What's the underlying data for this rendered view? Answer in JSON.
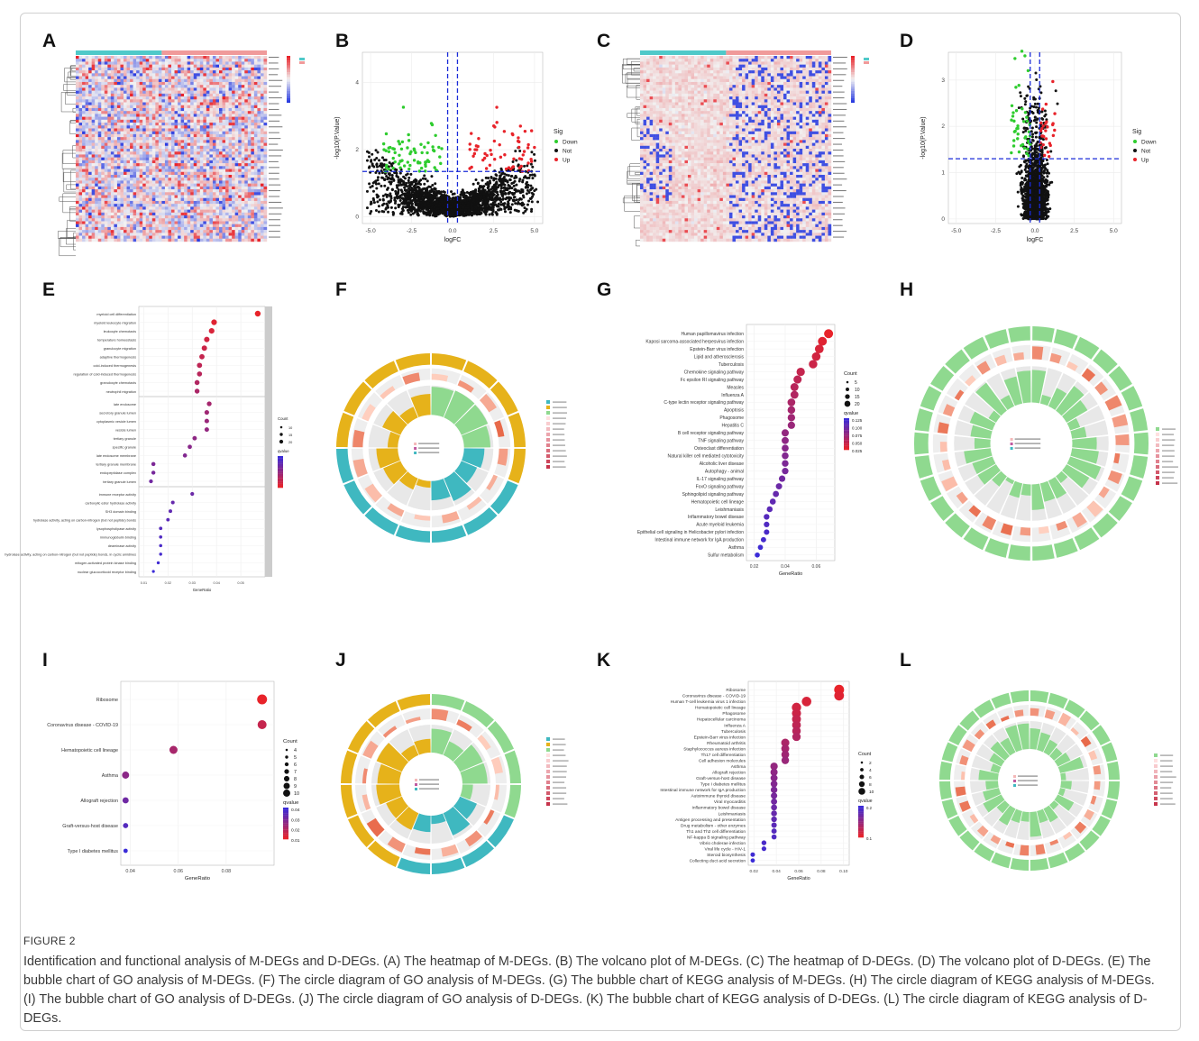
{
  "figure": {
    "title": "FIGURE 2",
    "description": "Identification and functional analysis of M-DEGs and D-DEGs. (A) The heatmap of M-DEGs. (B) The volcano plot of M-DEGs. (C) The heatmap of D-DEGs. (D) The volcano plot of D-DEGs. (E) The bubble chart of GO analysis of M-DEGs. (F) The circle diagram of GO analysis of M-DEGs. (G) The bubble chart of KEGG analysis of M-DEGs. (H) The circle diagram of KEGG analysis of M-DEGs. (I) The bubble chart of GO analysis of D-DEGs. (J) The circle diagram of GO analysis of D-DEGs. (K) The bubble chart of KEGG analysis of D-DEGs. (L) The circle diagram of KEGG analysis of D-DEGs."
  },
  "panels": {
    "A": "A",
    "B": "B",
    "C": "C",
    "D": "D",
    "E": "E",
    "F": "F",
    "G": "G",
    "H": "H",
    "I": "I",
    "J": "J",
    "K": "K",
    "L": "L"
  },
  "colors": {
    "down": "#2ecc2e",
    "not": "#111111",
    "up": "#e8232a",
    "heat_low": "#2b3de0",
    "heat_mid": "#f2f2f2",
    "heat_high": "#e8232a",
    "group_control": "#4fc9c9",
    "group_disease": "#f09a9a",
    "bp": "#3fb8c0",
    "cc": "#e6b21a",
    "mf": "#8fd98f",
    "kegg": "#8fd98f"
  },
  "chart_data": [
    {
      "panel": "B",
      "type": "scatter",
      "xlabel": "logFC",
      "ylabel": "-log10(P.Value)",
      "xticks": [
        "-5.0",
        "-2.5",
        "0.0",
        "2.5",
        "5.0"
      ],
      "yticks": [
        "0",
        "2",
        "4"
      ],
      "xlim": [
        -5.5,
        5.5
      ],
      "ylim": [
        -0.2,
        4.9
      ],
      "legend_title": "Sig",
      "legend": [
        "Down",
        "Not",
        "Up"
      ],
      "legend_placement": "right"
    },
    {
      "panel": "D",
      "type": "scatter",
      "xlabel": "logFC",
      "ylabel": "-log10(P.Value)",
      "xticks": [
        "-5.0",
        "-2.5",
        "0.0",
        "2.5",
        "5.0"
      ],
      "yticks": [
        "0",
        "1",
        "2",
        "3"
      ],
      "xlim": [
        -5.5,
        5.5
      ],
      "ylim": [
        -0.1,
        3.6
      ],
      "legend_title": "Sig",
      "legend": [
        "Down",
        "Not",
        "Up"
      ],
      "legend_placement": "right"
    },
    {
      "panel": "E",
      "type": "scatter",
      "xlabel": "GeneRatio",
      "xticks": [
        "0.01",
        "0.02",
        "0.03",
        "0.04",
        "0.05"
      ],
      "legend_count": "Count",
      "legend_qvalue": "qvalue",
      "categories": [
        "myeloid cell differentiation",
        "myeloid leukocyte migration",
        "leukocyte chemotaxis",
        "temperature homeostasis",
        "granulocyte migration",
        "adaptive thermogenesis",
        "cold-induced thermogenesis",
        "regulation of cold-induced thermogenesis",
        "granulocyte chemotaxis",
        "neutrophil migration",
        "late endosome",
        "secretory granule lumen",
        "cytoplasmic vesicle lumen",
        "vesicle lumen",
        "tertiary granule",
        "specific granule",
        "late endosome membrane",
        "tertiary granule membrane",
        "endopeptidase complex",
        "tertiary granule lumen",
        "immune receptor activity",
        "carboxylic ester hydrolase activity",
        "SH3 domain binding",
        "hydrolase activity, acting on carbon-nitrogen (but not peptide) bonds",
        "lysophospholipase activity",
        "immunoglobulin binding",
        "deaminase activity",
        "hydrolase activity, acting on carbon-nitrogen (but not peptide) bonds, in cyclic amidines",
        "mitogen-activated protein kinase binding",
        "nuclear glucocorticoid receptor binding"
      ],
      "x": [
        0.057,
        0.039,
        0.038,
        0.036,
        0.035,
        0.034,
        0.033,
        0.033,
        0.032,
        0.032,
        0.037,
        0.036,
        0.036,
        0.036,
        0.031,
        0.029,
        0.027,
        0.014,
        0.014,
        0.013,
        0.03,
        0.022,
        0.021,
        0.02,
        0.017,
        0.017,
        0.017,
        0.017,
        0.016,
        0.014
      ]
    },
    {
      "panel": "G",
      "type": "scatter",
      "xlabel": "GeneRatio",
      "xticks": [
        "0.02",
        "0.04",
        "0.06"
      ],
      "legend_count": "Count",
      "legend_count_values": [
        "5",
        "10",
        "15",
        "20"
      ],
      "legend_qvalue": "qvalue",
      "legend_qvalue_values": [
        "0.125",
        "0.100",
        "0.075",
        "0.050",
        "0.025"
      ],
      "categories": [
        "Human papillomavirus infection",
        "Kaposi sarcoma-associated herpesvirus infection",
        "Epstein-Barr virus infection",
        "Lipid and atherosclerosis",
        "Tuberculosis",
        "Chemokine signaling pathway",
        "Fc epsilon RI signaling pathway",
        "Measles",
        "Influenza A",
        "C-type lectin receptor signaling pathway",
        "Apoptosis",
        "Phagosome",
        "Hepatitis C",
        "B cell receptor signaling pathway",
        "TNF signaling pathway",
        "Osteoclast differentiation",
        "Natural killer cell mediated cytotoxicity",
        "Alcoholic liver disease",
        "Autophagy - animal",
        "IL-17 signaling pathway",
        "FoxO signaling pathway",
        "Sphingolipid signaling pathway",
        "Hematopoietic cell lineage",
        "Leishmaniasis",
        "Inflammatory bowel disease",
        "Acute myeloid leukemia",
        "Epithelial cell signaling in Helicobacter pylori infection",
        "Intestinal immune network for IgA production",
        "Asthma",
        "Sulfur metabolism"
      ],
      "x": [
        0.068,
        0.064,
        0.062,
        0.06,
        0.058,
        0.05,
        0.048,
        0.046,
        0.046,
        0.044,
        0.044,
        0.044,
        0.044,
        0.04,
        0.04,
        0.04,
        0.04,
        0.04,
        0.04,
        0.038,
        0.036,
        0.034,
        0.032,
        0.03,
        0.028,
        0.028,
        0.028,
        0.026,
        0.024,
        0.022
      ]
    },
    {
      "panel": "I",
      "type": "scatter",
      "xlabel": "GeneRatio",
      "xticks": [
        "0.04",
        "0.06",
        "0.08"
      ],
      "legend_count": "Count",
      "legend_count_values": [
        "4",
        "5",
        "6",
        "7",
        "8",
        "9",
        "10"
      ],
      "legend_qvalue": "qvalue",
      "legend_qvalue_values": [
        "0.04",
        "0.03",
        "0.02",
        "0.01"
      ],
      "categories": [
        "Ribosome",
        "Coronavirus disease - COVID-19",
        "Hematopoietic cell lineage",
        "Asthma",
        "Allograft rejection",
        "Graft-versus-host disease",
        "Type I diabetes mellitus"
      ],
      "x": [
        0.095,
        0.095,
        0.058,
        0.038,
        0.038,
        0.038,
        0.038
      ]
    },
    {
      "panel": "K",
      "type": "scatter",
      "xlabel": "GeneRatio",
      "xticks": [
        "0.02",
        "0.04",
        "0.06",
        "0.08",
        "0.10"
      ],
      "legend_count": "Count",
      "legend_count_values": [
        "2",
        "4",
        "6",
        "8",
        "10"
      ],
      "legend_qvalue": "qvalue",
      "legend_qvalue_values": [
        "0.2",
        "0.1"
      ],
      "categories": [
        "Ribosome",
        "Coronavirus disease - COVID-19",
        "Human T-cell leukemia virus 1 infection",
        "Hematopoietic cell lineage",
        "Phagosome",
        "Hepatocellular carcinoma",
        "Influenza A",
        "Tuberculosis",
        "Epstein-Barr virus infection",
        "Rheumatoid arthritis",
        "Staphylococcus aureus infection",
        "Th17 cell differentiation",
        "Cell adhesion molecules",
        "Asthma",
        "Allograft rejection",
        "Graft-versus-host disease",
        "Type I diabetes mellitus",
        "Intestinal immune network for IgA production",
        "Autoimmune thyroid disease",
        "Viral myocarditis",
        "Inflammatory bowel disease",
        "Leishmaniasis",
        "Antigen processing and presentation",
        "Drug metabolism - other enzymes",
        "Th1 and Th2 cell differentiation",
        "NF-kappa B signaling pathway",
        "Vibrio cholerae infection",
        "Viral life cycle - HIV-1",
        "Steroid biosynthesis",
        "Collecting duct acid secretion"
      ],
      "x": [
        0.096,
        0.096,
        0.067,
        0.058,
        0.058,
        0.058,
        0.058,
        0.058,
        0.058,
        0.048,
        0.048,
        0.048,
        0.048,
        0.038,
        0.038,
        0.038,
        0.038,
        0.038,
        0.038,
        0.038,
        0.038,
        0.038,
        0.038,
        0.038,
        0.038,
        0.038,
        0.029,
        0.029,
        0.019,
        0.019
      ]
    }
  ]
}
